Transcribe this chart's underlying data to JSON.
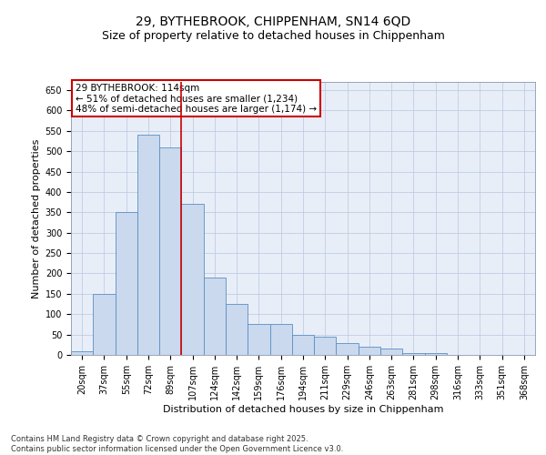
{
  "title_line1": "29, BYTHEBROOK, CHIPPENHAM, SN14 6QD",
  "title_line2": "Size of property relative to detached houses in Chippenham",
  "xlabel": "Distribution of detached houses by size in Chippenham",
  "ylabel": "Number of detached properties",
  "categories": [
    "20sqm",
    "37sqm",
    "55sqm",
    "72sqm",
    "89sqm",
    "107sqm",
    "124sqm",
    "142sqm",
    "159sqm",
    "176sqm",
    "194sqm",
    "211sqm",
    "229sqm",
    "246sqm",
    "263sqm",
    "281sqm",
    "298sqm",
    "316sqm",
    "333sqm",
    "351sqm",
    "368sqm"
  ],
  "values": [
    10,
    150,
    350,
    540,
    510,
    370,
    190,
    125,
    75,
    75,
    50,
    45,
    30,
    20,
    15,
    5,
    5,
    0,
    0,
    0,
    0
  ],
  "bar_color": "#cad9ed",
  "bar_edge_color": "#5b8ec4",
  "vline_x_index": 5,
  "vline_color": "#cc0000",
  "annotation_text": "29 BYTHEBROOK: 114sqm\n← 51% of detached houses are smaller (1,234)\n48% of semi-detached houses are larger (1,174) →",
  "annotation_box_color": "#cc0000",
  "ylim": [
    0,
    670
  ],
  "yticks": [
    0,
    50,
    100,
    150,
    200,
    250,
    300,
    350,
    400,
    450,
    500,
    550,
    600,
    650
  ],
  "background_color": "#e8eef8",
  "footer_line1": "Contains HM Land Registry data © Crown copyright and database right 2025.",
  "footer_line2": "Contains public sector information licensed under the Open Government Licence v3.0.",
  "title_fontsize": 10,
  "subtitle_fontsize": 9,
  "axis_label_fontsize": 8,
  "tick_fontsize": 7,
  "annotation_fontsize": 7.5,
  "footer_fontsize": 6
}
